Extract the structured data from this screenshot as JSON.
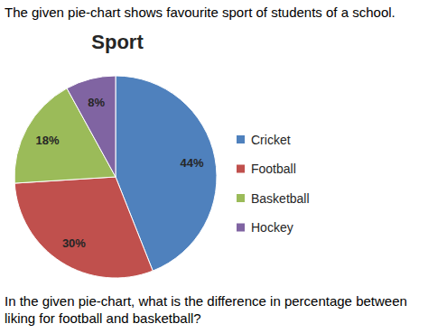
{
  "page": {
    "intro": "The given pie-chart shows favourite sport of students of a school.",
    "question": [
      "In the given pie-chart, what is the difference in percentage between",
      "liking for football and basketball?"
    ]
  },
  "chart_data": {
    "type": "pie",
    "title": "Sport",
    "categories": [
      "Cricket",
      "Football",
      "Basketball",
      "Hockey"
    ],
    "values": [
      44,
      30,
      18,
      8
    ],
    "value_labels": [
      "44%",
      "30%",
      "18%",
      "8%"
    ],
    "colors": [
      "#4f81bd",
      "#c0504d",
      "#9bbb59",
      "#8064a2"
    ],
    "data_labels": true,
    "legend": "right"
  }
}
